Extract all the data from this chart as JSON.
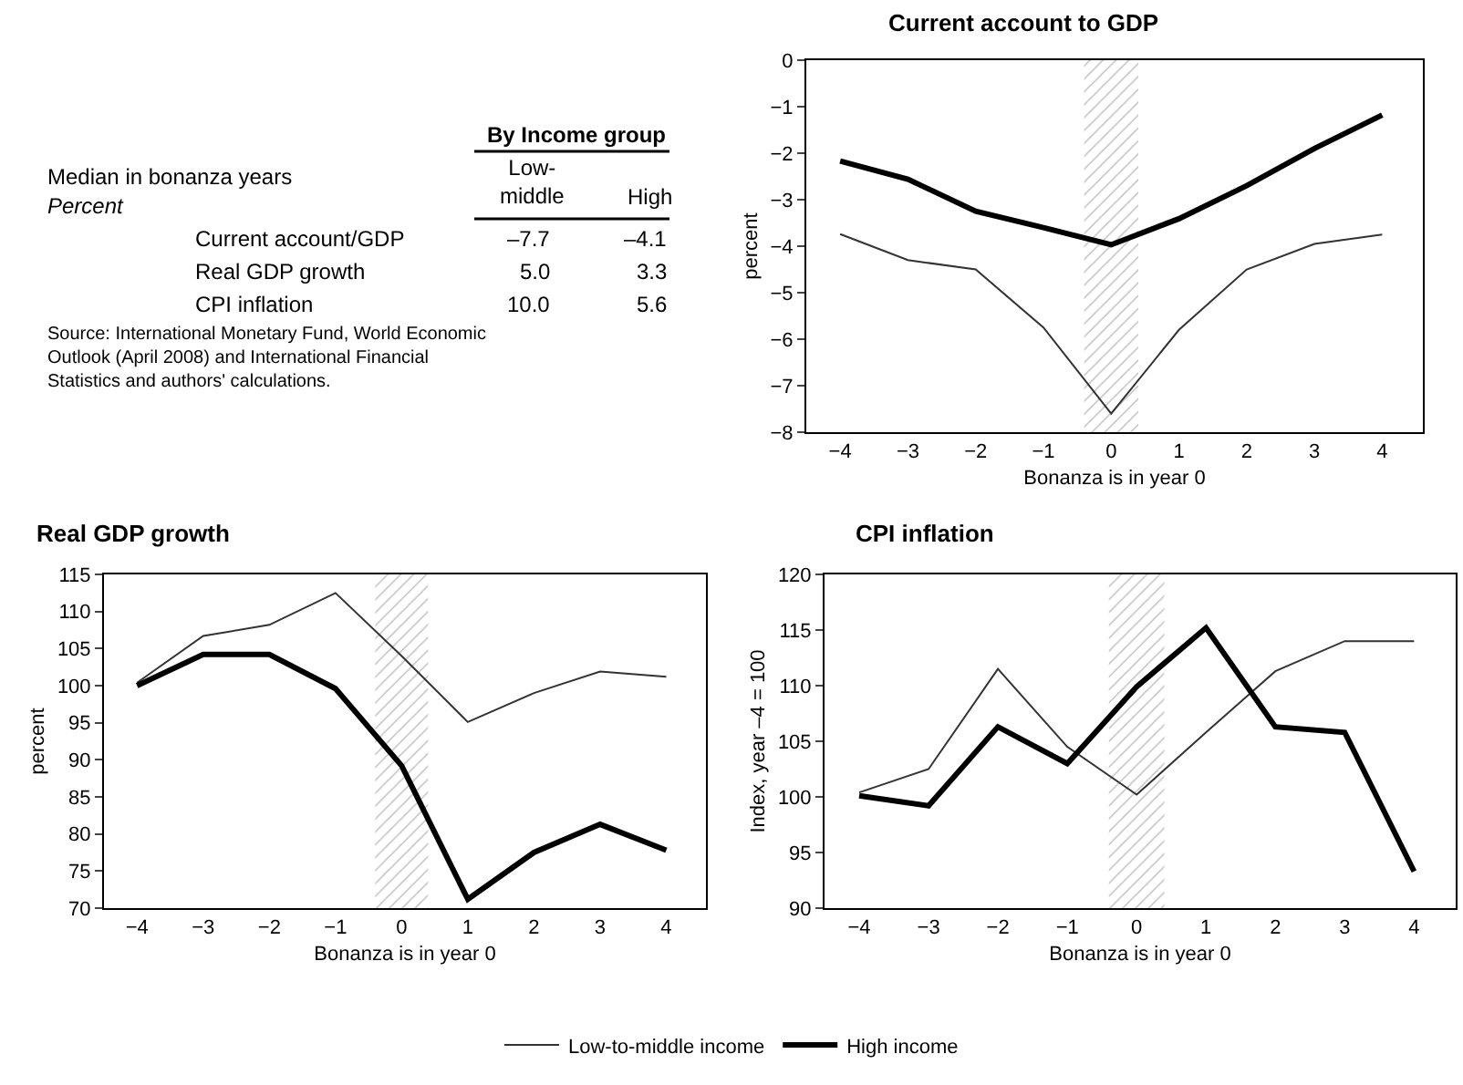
{
  "chart_data": [
    {
      "type": "other",
      "title": "Median in bonanza years",
      "subtitle": "Percent",
      "legend_title": "By Income group",
      "categories": [
        "Current account/GDP",
        "Real GDP growth",
        "CPI inflation"
      ],
      "series": [
        {
          "name": "Low-middle",
          "values": [
            -7.7,
            5.0,
            10.0
          ],
          "value_labels": [
            "–7.7",
            "5.0",
            "10.0"
          ]
        },
        {
          "name": "High",
          "values": [
            -4.1,
            3.3,
            5.6
          ],
          "value_labels": [
            "–4.1",
            "3.3",
            "5.6"
          ]
        }
      ],
      "annotations": [
        "Source: International Monetary Fund, World Economic Outlook (April 2008) and International Financial Statistics and authors' calculations."
      ]
    },
    {
      "type": "line",
      "title": "Current account to GDP",
      "xlabel": "Bonanza is in year 0",
      "ylabel": "percent",
      "x": [
        -4,
        -3,
        -2,
        -1,
        0,
        1,
        2,
        3,
        4
      ],
      "series": [
        {
          "color": "#333333",
          "values": [
            -3.74,
            -4.3,
            -4.5,
            -5.75,
            -7.6,
            -5.8,
            -4.5,
            -3.95,
            -3.75
          ]
        },
        {
          "color": "#000000",
          "values": [
            -2.17,
            -2.56,
            -3.25,
            -3.6,
            -3.97,
            -3.41,
            -2.7,
            -1.9,
            -1.18
          ]
        }
      ],
      "xlim": [
        -4.5,
        4.6
      ],
      "xticks": [
        -4,
        -3,
        -2,
        -1,
        0,
        1,
        2,
        3,
        4
      ],
      "ylim": [
        -8,
        0
      ],
      "yticks": [
        -8,
        -7,
        -6,
        -5,
        -4,
        -3,
        -2,
        -1,
        0
      ],
      "bands": [
        {
          "axis": "x",
          "from": -0.4,
          "to": 0.4,
          "color": "#808080"
        }
      ],
      "marker": "none",
      "line_style": "solid"
    },
    {
      "type": "line",
      "title": "Real GDP growth",
      "xlabel": "Bonanza is in year 0",
      "ylabel": "percent",
      "x": [
        -4,
        -3,
        -2,
        -1,
        0,
        1,
        2,
        3,
        4
      ],
      "series": [
        {
          "color": "#333333",
          "values": [
            100.4,
            106.7,
            108.2,
            112.5,
            104.0,
            95.1,
            99.0,
            101.9,
            101.2
          ]
        },
        {
          "color": "#000000",
          "values": [
            100.0,
            104.2,
            104.2,
            99.6,
            89.2,
            71.2,
            77.5,
            81.3,
            77.8
          ]
        }
      ],
      "xlim": [
        -4.5,
        4.6
      ],
      "xticks": [
        -4,
        -3,
        -2,
        -1,
        0,
        1,
        2,
        3,
        4
      ],
      "ylim": [
        70,
        115
      ],
      "yticks": [
        70,
        75,
        80,
        85,
        90,
        95,
        100,
        105,
        110,
        115
      ],
      "bands": [
        {
          "axis": "x",
          "from": -0.4,
          "to": 0.4,
          "color": "#808080"
        }
      ],
      "marker": "none",
      "line_style": "solid"
    },
    {
      "type": "line",
      "title": "CPI inflation",
      "xlabel": "Bonanza is in year 0",
      "ylabel": "Index, year –4 = 100",
      "x": [
        -4,
        -3,
        -2,
        -1,
        0,
        1,
        2,
        3,
        4
      ],
      "series": [
        {
          "name": "Low-to-middle income",
          "color": "#333333",
          "values": [
            100.4,
            102.5,
            111.5,
            104.5,
            100.2,
            105.8,
            111.3,
            114.0,
            114.0
          ]
        },
        {
          "name": "High income",
          "color": "#000000",
          "values": [
            100.1,
            99.2,
            106.3,
            103.0,
            109.9,
            115.2,
            106.3,
            105.8,
            93.3
          ]
        }
      ],
      "xlim": [
        -4.5,
        4.6
      ],
      "xticks": [
        -4,
        -3,
        -2,
        -1,
        0,
        1,
        2,
        3,
        4
      ],
      "ylim": [
        90,
        120
      ],
      "yticks": [
        90,
        95,
        100,
        105,
        110,
        115,
        120
      ],
      "bands": [
        {
          "axis": "x",
          "from": -0.4,
          "to": 0.4,
          "color": "#808080"
        }
      ],
      "legend": "bottom",
      "marker": "none",
      "line_style": "solid"
    }
  ]
}
